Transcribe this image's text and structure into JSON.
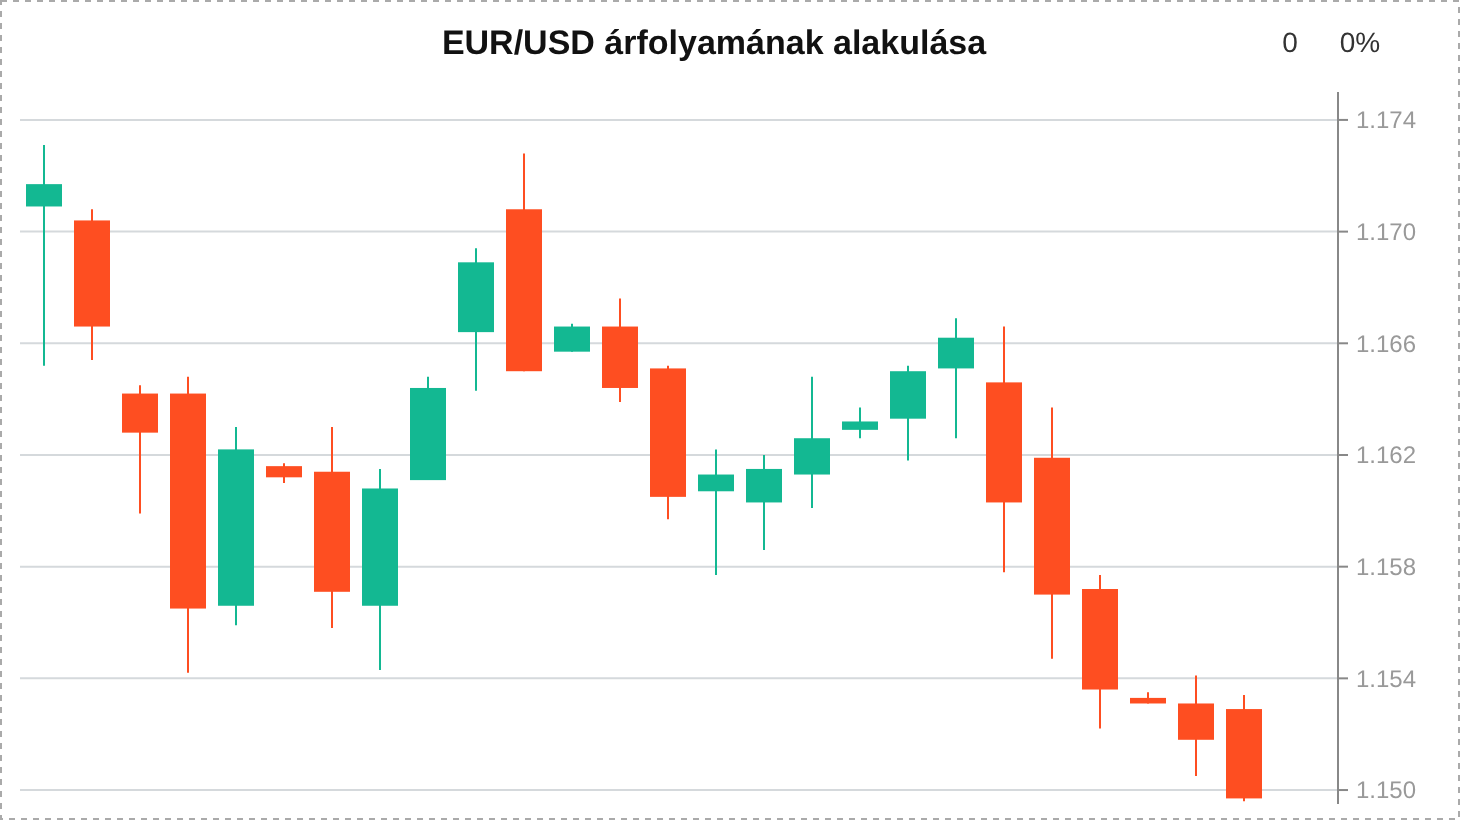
{
  "chart_data": {
    "type": "candlestick",
    "title": "EUR/USD árfolyamának alakulása",
    "annotations": [
      "0",
      "0%"
    ],
    "categories": [
      null,
      null,
      null,
      null,
      null,
      null,
      null,
      null,
      null,
      null,
      null,
      null,
      null,
      null,
      null,
      null,
      null,
      null,
      null,
      null,
      null,
      null,
      null,
      null,
      null,
      null
    ],
    "ohlc": [
      [
        1.1709,
        1.1731,
        1.1652,
        1.1717
      ],
      [
        1.1704,
        1.1708,
        1.1654,
        1.1666
      ],
      [
        1.1642,
        1.1645,
        1.1599,
        1.1628
      ],
      [
        1.1642,
        1.1648,
        1.1542,
        1.1565
      ],
      [
        1.1566,
        1.163,
        1.1559,
        1.1622
      ],
      [
        1.1616,
        1.1617,
        1.161,
        1.1612
      ],
      [
        1.1614,
        1.163,
        1.1558,
        1.1571
      ],
      [
        1.1566,
        1.1615,
        1.1543,
        1.1608
      ],
      [
        1.1611,
        1.1648,
        1.1611,
        1.1644
      ],
      [
        1.1664,
        1.1694,
        1.1643,
        1.1689
      ],
      [
        1.1708,
        1.1728,
        1.165,
        1.165
      ],
      [
        1.1657,
        1.1667,
        1.1657,
        1.1666
      ],
      [
        1.1666,
        1.1676,
        1.1639,
        1.1644
      ],
      [
        1.1651,
        1.1652,
        1.1597,
        1.1605
      ],
      [
        1.1607,
        1.1622,
        1.1577,
        1.1613
      ],
      [
        1.1603,
        1.162,
        1.1586,
        1.1615
      ],
      [
        1.1613,
        1.1648,
        1.1601,
        1.1626
      ],
      [
        1.1629,
        1.1637,
        1.1626,
        1.1632
      ],
      [
        1.1633,
        1.1652,
        1.1618,
        1.165
      ],
      [
        1.1651,
        1.1669,
        1.1626,
        1.1662
      ],
      [
        1.1646,
        1.1666,
        1.1578,
        1.1603
      ],
      [
        1.1619,
        1.1637,
        1.1547,
        1.157
      ],
      [
        1.1572,
        1.1577,
        1.1522,
        1.1536
      ],
      [
        1.1533,
        1.1535,
        1.1531,
        1.1531
      ],
      [
        1.1531,
        1.1541,
        1.1505,
        1.1518
      ],
      [
        1.1529,
        1.1534,
        1.1496,
        1.1497
      ]
    ],
    "colors": [
      "#13b892",
      "#fe4e21",
      "#fe4e21",
      "#fe4e21",
      "#13b892",
      "#fe4e21",
      "#fe4e21",
      "#13b892",
      "#13b892",
      "#13b892",
      "#fe4e21",
      "#13b892",
      "#fe4e21",
      "#fe4e21",
      "#13b892",
      "#13b892",
      "#13b892",
      "#13b892",
      "#13b892",
      "#13b892",
      "#fe4e21",
      "#fe4e21",
      "#fe4e21",
      "#fe4e21",
      "#fe4e21",
      "#fe4e21"
    ],
    "ylim": [
      1.1495,
      1.175
    ],
    "yticks": [
      {
        "value": 1.15,
        "label": "1.150"
      },
      1.154,
      1.158,
      1.162,
      1.166,
      {
        "value": 1.17,
        "label": "1.170"
      },
      1.174
    ],
    "grid": "y"
  }
}
